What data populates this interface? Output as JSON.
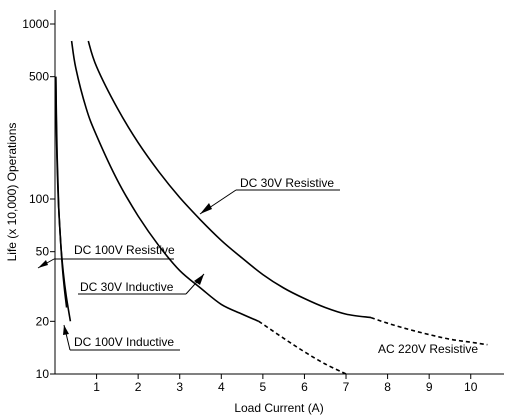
{
  "chart_data": {
    "type": "line",
    "title": "",
    "xlabel": "Load Current (A)",
    "ylabel": "Life (x 10,000) Operations",
    "xlim": [
      0,
      10.8
    ],
    "ylim": [
      10,
      1000
    ],
    "y_scale": "log",
    "grid": false,
    "x_ticks": [
      1,
      2,
      3,
      4,
      5,
      6,
      7,
      8,
      9,
      10
    ],
    "y_ticks": [
      10,
      20,
      50,
      100,
      500,
      1000
    ],
    "series": [
      {
        "name": "DC 30V Resistive",
        "style": "solid",
        "x": [
          0.8,
          1.0,
          1.5,
          2.0,
          2.5,
          3.0,
          3.5,
          4.0,
          4.5,
          5.0,
          5.5,
          6.0,
          6.5,
          7.0,
          7.6
        ],
        "y": [
          800,
          570,
          330,
          210,
          143,
          102,
          76,
          58,
          46,
          37,
          31,
          27,
          24,
          22,
          21
        ]
      },
      {
        "name": "AC 220V Resistive",
        "style": "dashed",
        "x": [
          7.6,
          8.0,
          8.5,
          9.0,
          9.5,
          10.0,
          10.4
        ],
        "y": [
          21,
          19.5,
          18,
          16.8,
          15.8,
          15.2,
          14.7
        ]
      },
      {
        "name": "DC 30V Inductive",
        "style": "solid",
        "x": [
          0.4,
          0.5,
          0.75,
          1.0,
          1.5,
          2.0,
          2.5,
          3.0,
          3.5,
          4.0,
          4.5,
          4.9
        ],
        "y": [
          800,
          560,
          330,
          230,
          128,
          80,
          54,
          39,
          31,
          25,
          22,
          20
        ]
      },
      {
        "name": "DC 30V Inductive (extrapolated)",
        "style": "dashed",
        "x": [
          4.9,
          5.5,
          6.0,
          6.5,
          7.0
        ],
        "y": [
          20,
          16,
          13.4,
          11.4,
          10
        ]
      },
      {
        "name": "DC 100V Resistive",
        "style": "solid",
        "x": [
          0.02,
          0.04,
          0.08,
          0.13,
          0.18,
          0.23,
          0.28
        ],
        "y": [
          500,
          200,
          100,
          60,
          40,
          30,
          24
        ]
      },
      {
        "name": "DC 100V Inductive",
        "style": "solid",
        "x": [
          0.02,
          0.05,
          0.09,
          0.14,
          0.2,
          0.27,
          0.37
        ],
        "y": [
          500,
          180,
          90,
          55,
          38,
          28,
          20
        ]
      }
    ],
    "annotations": [
      "DC 30V Resistive",
      "AC 220V Resistive",
      "DC 30V Inductive",
      "DC 100V Resistive",
      "DC 100V Inductive"
    ]
  }
}
